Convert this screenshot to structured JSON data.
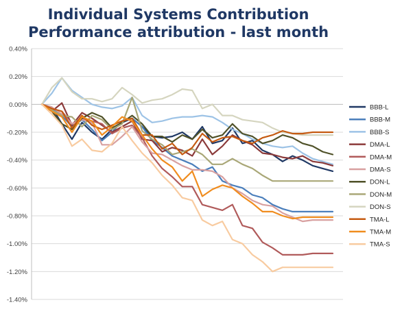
{
  "chart_data": {
    "type": "line",
    "title": "Individual Systems Contribution",
    "subtitle": "Performance attribution - last month",
    "xlabel": "",
    "ylabel": "",
    "ylim": [
      -0.014,
      0.004
    ],
    "y_ticks": [
      0.004,
      0.002,
      0.0,
      -0.002,
      -0.004,
      -0.006,
      -0.008,
      -0.01,
      -0.012,
      -0.014
    ],
    "y_tick_labels": [
      "0.40%",
      "0.20%",
      "0.00%",
      "-0.20%",
      "-0.40%",
      "-0.60%",
      "-0.80%",
      "-1.00%",
      "-1.20%",
      "-1.40%"
    ],
    "grid": true,
    "legend": "right",
    "x": [
      1,
      2,
      3,
      4,
      5,
      6,
      7,
      8,
      9,
      10,
      11,
      12,
      13,
      14,
      15,
      16,
      17,
      18,
      19,
      20,
      21,
      22,
      23,
      24,
      25,
      26,
      27,
      28,
      29,
      30
    ],
    "series": [
      {
        "name": "BBB-L",
        "color": "#1f3864",
        "values": [
          0.0,
          -0.0002,
          -0.0014,
          -0.0025,
          -0.0013,
          -0.002,
          -0.0025,
          -0.0018,
          -0.0013,
          -0.001,
          -0.0016,
          -0.0023,
          -0.0024,
          -0.0023,
          -0.002,
          -0.0025,
          -0.0016,
          -0.0028,
          -0.0026,
          -0.0017,
          -0.0028,
          -0.0026,
          -0.0033,
          -0.0036,
          -0.0041,
          -0.0037,
          -0.004,
          -0.0044,
          -0.0046,
          -0.0048
        ]
      },
      {
        "name": "BBB-M",
        "color": "#4a7ebb",
        "values": [
          0.0,
          -0.0003,
          -0.0008,
          -0.0016,
          -0.0011,
          -0.0018,
          -0.0026,
          -0.002,
          -0.0012,
          -0.001,
          -0.0016,
          -0.0026,
          -0.0031,
          -0.0037,
          -0.004,
          -0.0043,
          -0.0048,
          -0.0045,
          -0.0055,
          -0.0058,
          -0.006,
          -0.0065,
          -0.0067,
          -0.0072,
          -0.0075,
          -0.0077,
          -0.0077,
          -0.0077,
          -0.0077,
          -0.0077
        ]
      },
      {
        "name": "BBB-S",
        "color": "#9dc3e6",
        "values": [
          0.0,
          0.0008,
          0.0019,
          0.001,
          0.0005,
          0.0,
          -0.0002,
          -0.0003,
          -0.0001,
          0.0005,
          -0.0008,
          -0.0013,
          -0.0012,
          -0.001,
          -0.0009,
          -0.0009,
          -0.0008,
          -0.0009,
          -0.0013,
          -0.0018,
          -0.0021,
          -0.0025,
          -0.0028,
          -0.003,
          -0.0031,
          -0.003,
          -0.0035,
          -0.0039,
          -0.0041,
          -0.0043
        ]
      },
      {
        "name": "DMA-L",
        "color": "#8b3a3a",
        "values": [
          0.0,
          -0.0005,
          0.0001,
          -0.0015,
          -0.0006,
          -0.001,
          -0.0015,
          -0.002,
          -0.0016,
          -0.0012,
          -0.0025,
          -0.0026,
          -0.0034,
          -0.0031,
          -0.0033,
          -0.0037,
          -0.0025,
          -0.0036,
          -0.003,
          -0.0022,
          -0.0026,
          -0.0029,
          -0.0035,
          -0.0036,
          -0.0038,
          -0.0039,
          -0.0037,
          -0.0041,
          -0.0042,
          -0.0044
        ]
      },
      {
        "name": "DMA-M",
        "color": "#b05a5a",
        "values": [
          0.0,
          -0.0003,
          -0.0005,
          -0.0014,
          -0.001,
          -0.0012,
          -0.0014,
          -0.0021,
          -0.0017,
          -0.0015,
          -0.0024,
          -0.0037,
          -0.0046,
          -0.0052,
          -0.0059,
          -0.0059,
          -0.0072,
          -0.0074,
          -0.0076,
          -0.0072,
          -0.0087,
          -0.0089,
          -0.0099,
          -0.0103,
          -0.0108,
          -0.0108,
          -0.0108,
          -0.0107,
          -0.0107,
          -0.0107
        ]
      },
      {
        "name": "DMA-S",
        "color": "#d8a0a0",
        "values": [
          0.0,
          -0.0002,
          -0.0007,
          -0.0014,
          -0.0011,
          -0.0013,
          -0.0029,
          -0.0029,
          -0.0023,
          -0.0016,
          -0.0027,
          -0.0035,
          -0.0036,
          -0.004,
          -0.0044,
          -0.0047,
          -0.0047,
          -0.0048,
          -0.0052,
          -0.006,
          -0.0064,
          -0.0069,
          -0.0072,
          -0.0073,
          -0.0078,
          -0.0081,
          -0.0084,
          -0.0083,
          -0.0083,
          -0.0083
        ]
      },
      {
        "name": "DON-L",
        "color": "#4f5128",
        "values": [
          0.0,
          -0.0005,
          -0.0014,
          -0.0018,
          -0.001,
          -0.0006,
          -0.0009,
          -0.0017,
          -0.0013,
          -0.0008,
          -0.0014,
          -0.0023,
          -0.0023,
          -0.0027,
          -0.0022,
          -0.0025,
          -0.0018,
          -0.0024,
          -0.0022,
          -0.0014,
          -0.0021,
          -0.0023,
          -0.0028,
          -0.0026,
          -0.0022,
          -0.0024,
          -0.0028,
          -0.003,
          -0.0034,
          -0.0036
        ]
      },
      {
        "name": "DON-M",
        "color": "#a9a777",
        "values": [
          0.0,
          -0.0004,
          -0.0008,
          -0.0009,
          -0.0016,
          -0.0008,
          -0.0011,
          -0.0018,
          -0.0014,
          0.0005,
          -0.0019,
          -0.0025,
          -0.0029,
          -0.0036,
          -0.0034,
          -0.0032,
          -0.0036,
          -0.0043,
          -0.0043,
          -0.0039,
          -0.0043,
          -0.0046,
          -0.0051,
          -0.0055,
          -0.0055,
          -0.0055,
          -0.0055,
          -0.0055,
          -0.0055,
          -0.0055
        ]
      },
      {
        "name": "DON-S",
        "color": "#d5d5bf",
        "values": [
          0.0,
          0.0012,
          0.0019,
          0.0009,
          0.0004,
          0.0004,
          0.0002,
          0.0004,
          0.0012,
          0.0007,
          0.0001,
          0.0003,
          0.0004,
          0.0007,
          0.0011,
          0.001,
          -0.0003,
          0.0,
          -0.0008,
          -0.0008,
          -0.0011,
          -0.0012,
          -0.0013,
          -0.0017,
          -0.002,
          -0.0021,
          -0.0022,
          -0.0022,
          -0.0022,
          -0.0022
        ]
      },
      {
        "name": "TMA-L",
        "color": "#c55a11",
        "values": [
          0.0,
          -0.0003,
          -0.0005,
          -0.0017,
          -0.0008,
          -0.0015,
          -0.0018,
          -0.0015,
          -0.0012,
          -0.001,
          -0.0022,
          -0.0022,
          -0.0032,
          -0.0028,
          -0.0036,
          -0.0031,
          -0.0021,
          -0.0027,
          -0.0024,
          -0.0023,
          -0.0026,
          -0.0028,
          -0.0024,
          -0.0022,
          -0.0019,
          -0.0021,
          -0.0021,
          -0.002,
          -0.002,
          -0.002
        ]
      },
      {
        "name": "TMA-M",
        "color": "#f08c1e",
        "values": [
          0.0,
          -0.0005,
          -0.0009,
          -0.002,
          -0.0009,
          -0.0012,
          -0.0022,
          -0.0016,
          -0.0009,
          -0.0012,
          -0.0022,
          -0.0032,
          -0.004,
          -0.0045,
          -0.0055,
          -0.0048,
          -0.0066,
          -0.0061,
          -0.0058,
          -0.006,
          -0.0066,
          -0.0071,
          -0.0077,
          -0.0077,
          -0.008,
          -0.0082,
          -0.0081,
          -0.0081,
          -0.0081,
          -0.0081
        ]
      },
      {
        "name": "TMA-S",
        "color": "#f8cba0",
        "values": [
          0.0,
          -0.0007,
          -0.0015,
          -0.003,
          -0.0025,
          -0.0033,
          -0.0034,
          -0.0028,
          -0.0016,
          -0.0026,
          -0.0035,
          -0.0042,
          -0.0051,
          -0.0058,
          -0.0067,
          -0.0069,
          -0.0083,
          -0.0087,
          -0.0084,
          -0.0097,
          -0.01,
          -0.0108,
          -0.0113,
          -0.012,
          -0.0117,
          -0.0117,
          -0.0117,
          -0.0117,
          -0.0117,
          -0.0117
        ]
      }
    ]
  }
}
